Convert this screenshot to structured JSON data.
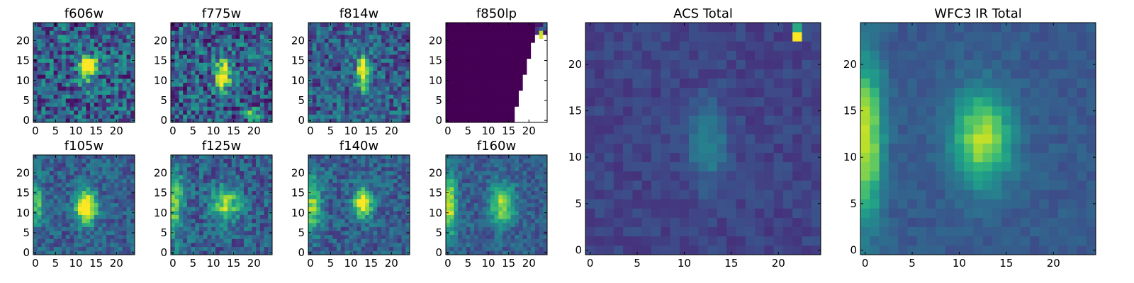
{
  "figure_description_free": true,
  "chart_data": [
    {
      "type": "heatmap",
      "title": "f606w",
      "xlim": [
        -0.5,
        24.5
      ],
      "ylim": [
        -0.5,
        24.5
      ],
      "xticks": [
        0,
        5,
        10,
        15,
        20
      ],
      "yticks": [
        0,
        5,
        10,
        15,
        20
      ],
      "xtick_labels": [
        "0",
        "5",
        "10",
        "15",
        "20"
      ],
      "ytick_labels": [
        "0",
        "5",
        "10",
        "15",
        "20"
      ],
      "colormap": "viridis",
      "noise": 0.55,
      "blobs": [
        [
          13.5,
          14,
          1.5,
          1.5,
          0.75
        ],
        [
          12.5,
          11,
          1.5,
          2.5,
          0.35
        ]
      ],
      "grid": false
    },
    {
      "type": "heatmap",
      "title": "f775w",
      "xlim": [
        -0.5,
        24.5
      ],
      "ylim": [
        -0.5,
        24.5
      ],
      "xticks": [
        0,
        5,
        10,
        15,
        20
      ],
      "yticks": [
        0,
        5,
        10,
        15,
        20
      ],
      "xtick_labels": [
        "0",
        "5",
        "10",
        "15",
        "20"
      ],
      "ytick_labels": [
        "0",
        "5",
        "10",
        "15",
        "20"
      ],
      "colormap": "viridis",
      "noise": 0.55,
      "blobs": [
        [
          12.5,
          11.5,
          1.2,
          2.8,
          0.8
        ],
        [
          19.5,
          1.5,
          0.8,
          0.8,
          0.8
        ]
      ],
      "grid": false
    },
    {
      "type": "heatmap",
      "title": "f814w",
      "xlim": [
        -0.5,
        24.5
      ],
      "ylim": [
        -0.5,
        24.5
      ],
      "xticks": [
        0,
        5,
        10,
        15,
        20
      ],
      "yticks": [
        0,
        5,
        10,
        15,
        20
      ],
      "xtick_labels": [
        "0",
        "5",
        "10",
        "15",
        "20"
      ],
      "ytick_labels": [
        "0",
        "5",
        "10",
        "15",
        "20"
      ],
      "colormap": "viridis",
      "noise": 0.45,
      "blobs": [
        [
          13,
          12,
          1.0,
          3.0,
          0.85
        ]
      ],
      "grid": false
    },
    {
      "type": "heatmap",
      "title": "f850lp",
      "xlim": [
        -0.5,
        24.5
      ],
      "ylim": [
        -0.5,
        24.5
      ],
      "xticks": [
        0,
        5,
        10,
        15,
        20
      ],
      "yticks": [
        0,
        5,
        10,
        15,
        20
      ],
      "xtick_labels": [
        "0",
        "5",
        "10",
        "15",
        "20"
      ],
      "ytick_labels": [
        "0",
        "5",
        "10",
        "15",
        "20"
      ],
      "colormap": "viridis",
      "mask": "f850lp",
      "grid": false
    },
    {
      "type": "heatmap",
      "title": "f105w",
      "xlim": [
        -0.5,
        24.5
      ],
      "ylim": [
        -0.5,
        24.5
      ],
      "xticks": [
        0,
        5,
        10,
        15,
        20
      ],
      "yticks": [
        0,
        5,
        10,
        15,
        20
      ],
      "xtick_labels": [
        "0",
        "5",
        "10",
        "15",
        "20"
      ],
      "ytick_labels": [
        "0",
        "5",
        "10",
        "15",
        "20"
      ],
      "colormap": "viridis",
      "noise": 0.3,
      "blobs": [
        [
          12.5,
          11.5,
          1.8,
          3.0,
          0.85
        ],
        [
          0.5,
          12,
          1.2,
          4.0,
          0.4
        ]
      ],
      "grid": false
    },
    {
      "type": "heatmap",
      "title": "f125w",
      "xlim": [
        -0.5,
        24.5
      ],
      "ylim": [
        -0.5,
        24.5
      ],
      "xticks": [
        0,
        5,
        10,
        15,
        20
      ],
      "yticks": [
        0,
        5,
        10,
        15,
        20
      ],
      "xtick_labels": [
        "0",
        "5",
        "10",
        "15",
        "20"
      ],
      "ytick_labels": [
        "0",
        "5",
        "10",
        "15",
        "20"
      ],
      "colormap": "viridis",
      "noise": 0.35,
      "blobs": [
        [
          13,
          12,
          2.5,
          3.0,
          0.55
        ],
        [
          0.5,
          12,
          1.5,
          6.0,
          0.45
        ]
      ],
      "grid": false
    },
    {
      "type": "heatmap",
      "title": "f140w",
      "xlim": [
        -0.5,
        24.5
      ],
      "ylim": [
        -0.5,
        24.5
      ],
      "xticks": [
        0,
        5,
        10,
        15,
        20
      ],
      "yticks": [
        0,
        5,
        10,
        15,
        20
      ],
      "xtick_labels": [
        "0",
        "5",
        "10",
        "15",
        "20"
      ],
      "ytick_labels": [
        "0",
        "5",
        "10",
        "15",
        "20"
      ],
      "colormap": "viridis",
      "noise": 0.3,
      "blobs": [
        [
          13,
          12.5,
          1.5,
          2.5,
          0.85
        ],
        [
          0.5,
          12,
          1.5,
          5.0,
          0.5
        ]
      ],
      "grid": false
    },
    {
      "type": "heatmap",
      "title": "f160w",
      "xlim": [
        -0.5,
        24.5
      ],
      "ylim": [
        -0.5,
        24.5
      ],
      "xticks": [
        0,
        5,
        10,
        15,
        20
      ],
      "yticks": [
        0,
        5,
        10,
        15,
        20
      ],
      "xtick_labels": [
        "0",
        "5",
        "10",
        "15",
        "20"
      ],
      "ytick_labels": [
        "0",
        "5",
        "10",
        "15",
        "20"
      ],
      "colormap": "viridis",
      "noise": 0.25,
      "blobs": [
        [
          13.5,
          12,
          2.0,
          3.5,
          0.6
        ],
        [
          0.3,
          12,
          1.2,
          5.0,
          0.7
        ]
      ],
      "grid": false
    },
    {
      "type": "heatmap",
      "title": "ACS Total",
      "xlim": [
        -0.5,
        24.5
      ],
      "ylim": [
        -0.5,
        24.5
      ],
      "xticks": [
        0,
        5,
        10,
        15,
        20
      ],
      "yticks": [
        0,
        5,
        10,
        15,
        20
      ],
      "xtick_labels": [
        "0",
        "5",
        "10",
        "15",
        "20"
      ],
      "ytick_labels": [
        "0",
        "5",
        "10",
        "15",
        "20"
      ],
      "colormap": "viridis",
      "noise": 0.12,
      "base": 0.2,
      "blobs": [
        [
          12.5,
          11.5,
          1.5,
          3.0,
          0.25
        ]
      ],
      "hot": [
        [
          22,
          23,
          1.0
        ],
        [
          22,
          24,
          0.6
        ]
      ],
      "grid": false
    },
    {
      "type": "heatmap",
      "title": "WFC3 IR Total",
      "xlim": [
        -0.5,
        24.5
      ],
      "ylim": [
        -0.5,
        24.5
      ],
      "xticks": [
        0,
        5,
        10,
        15,
        20
      ],
      "yticks": [
        0,
        5,
        10,
        15,
        20
      ],
      "xtick_labels": [
        "0",
        "5",
        "10",
        "15",
        "20"
      ],
      "ytick_labels": [
        "0",
        "5",
        "10",
        "15",
        "20"
      ],
      "colormap": "viridis",
      "noise": 0.1,
      "base": 0.28,
      "blobs": [
        [
          12.5,
          12,
          2.2,
          3.5,
          0.6
        ],
        [
          0,
          12,
          1.3,
          6.0,
          0.65
        ]
      ],
      "grid": false
    }
  ]
}
